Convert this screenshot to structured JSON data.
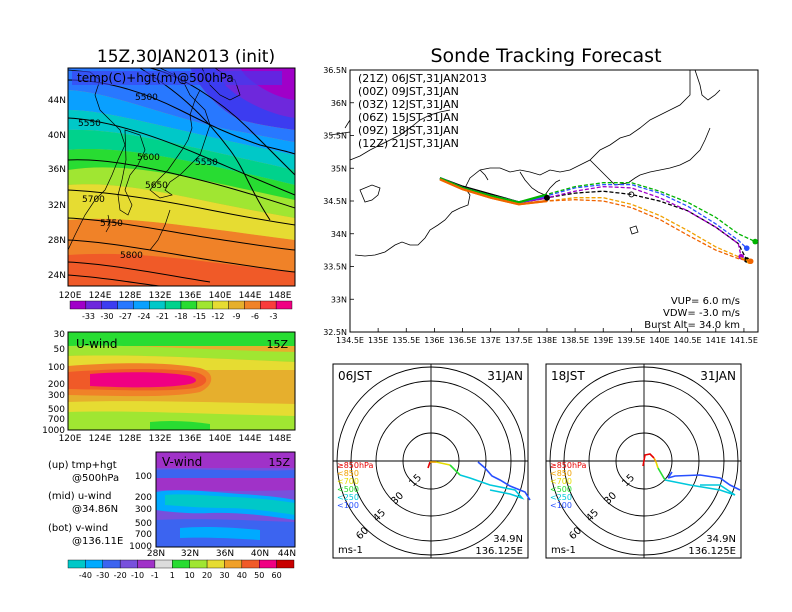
{
  "main_title": "Sonde Tracking Forecast",
  "init_title": "15Z,30JAN2013 (init)",
  "map_panel": {
    "label": "temp(C)+hgt(m)@500hPa",
    "lat_ticks": [
      "44N",
      "40N",
      "36N",
      "32N",
      "28N",
      "24N"
    ],
    "lon_ticks": [
      "120E",
      "124E",
      "128E",
      "132E",
      "136E",
      "140E",
      "144E",
      "148E"
    ],
    "contour_labels": [
      "5500",
      "5550",
      "5600",
      "5550",
      "5650",
      "5700",
      "5750",
      "5800"
    ],
    "colorbar_ticks": [
      "-33",
      "-30",
      "-27",
      "-24",
      "-21",
      "-18",
      "-15",
      "-12",
      "-9",
      "-6",
      "-3"
    ],
    "colorbar_colors": [
      "#a000c8",
      "#6e28dc",
      "#3c3cf0",
      "#2878ff",
      "#0aa0ff",
      "#00c8c8",
      "#00d28c",
      "#28dc32",
      "#a0e632",
      "#e6dc32",
      "#e6af2d",
      "#f08228",
      "#fa3c3c",
      "#f00082"
    ]
  },
  "uwind_panel": {
    "title": "U-wind",
    "time": "15Z",
    "levels": [
      "30",
      "50",
      "100",
      "200",
      "300",
      "500",
      "700",
      "1000"
    ],
    "lon_ticks": [
      "120E",
      "124E",
      "128E",
      "132E",
      "136E",
      "140E",
      "144E",
      "148E"
    ]
  },
  "vwind_panel": {
    "title": "V-wind",
    "time": "15Z",
    "levels": [
      "100",
      "200",
      "300",
      "500",
      "700",
      "1000"
    ],
    "lat_ticks": [
      "28N",
      "32N",
      "36N",
      "40N",
      "44N"
    ]
  },
  "panel_notes": {
    "up1": "(up)  tmp+hgt",
    "up2": "@500hPa",
    "mid1": "(mid)  u-wind",
    "mid2": "@34.86N",
    "bot1": "(bot)  v-wind",
    "bot2": "@136.11E"
  },
  "wind_colorbar": {
    "ticks": [
      "-40",
      "-30",
      "-20",
      "-10",
      "-1",
      "1",
      "10",
      "20",
      "30",
      "40",
      "50",
      "60"
    ],
    "colors": [
      "#00c8c8",
      "#00aaff",
      "#3c64f0",
      "#7850dc",
      "#a032c8",
      "#dcdcdc",
      "#28dc32",
      "#a0e632",
      "#e6dc32",
      "#f0a028",
      "#f05a28",
      "#f00082",
      "#c80000"
    ]
  },
  "legend": [
    {
      "label": "(21Z)  06JST,31JAN2013",
      "color": "#000000"
    },
    {
      "label": "(00Z)  09JST,31JAN",
      "color": "#a000c8"
    },
    {
      "label": "(03Z)  12JST,31JAN",
      "color": "#2850ff"
    },
    {
      "label": "(06Z)  15JST,31JAN",
      "color": "#00b400"
    },
    {
      "label": "(09Z)  18JST,31JAN",
      "color": "#f0a000"
    },
    {
      "label": "(12Z)  21JST,31JAN",
      "color": "#f06400"
    }
  ],
  "track_info": {
    "vup": "VUP=  6.0  m/s",
    "vdw": "VDW= -3.0  m/s",
    "burst": "Burst Alt=  34.0  km"
  },
  "hodographs": [
    {
      "time": "06JST",
      "date": "31JAN",
      "lat": "34.9N",
      "lon": "136.125E",
      "unit": "ms-1"
    },
    {
      "time": "18JST",
      "date": "31JAN",
      "lat": "34.9N",
      "lon": "136.125E",
      "unit": "ms-1"
    }
  ],
  "hodo_rings": [
    "15",
    "30",
    "45",
    "60"
  ],
  "hodo_level_legend": [
    {
      "label": "≥850hPa",
      "color": "#e60000"
    },
    {
      "label": "<850",
      "color": "#f0a000"
    },
    {
      "label": "<700",
      "color": "#e6dc00"
    },
    {
      "label": "<500",
      "color": "#28dc32"
    },
    {
      "label": "<250",
      "color": "#00c8dc"
    },
    {
      "label": "<100",
      "color": "#2850ff"
    }
  ],
  "chart_data": {
    "type": "line",
    "title": "Sonde Tracking Forecast",
    "xlabel": "",
    "ylabel": "",
    "xlim": [
      134.5,
      141.75
    ],
    "ylim": [
      32.5,
      36.5
    ],
    "x_ticks": [
      "134.5E",
      "135E",
      "135.5E",
      "136E",
      "136.5E",
      "137E",
      "137.5E",
      "138E",
      "138.5E",
      "139E",
      "139.5E",
      "140E",
      "140.5E",
      "141E",
      "141.5E"
    ],
    "y_ticks": [
      "32.5N",
      "33N",
      "33.5N",
      "34N",
      "34.5N",
      "35N",
      "35.5N",
      "36N",
      "36.5N"
    ],
    "series": [
      {
        "name": "(21Z)  06JST,31JAN2013",
        "color": "#000000",
        "x": [
          136.1,
          136.5,
          137,
          137.5,
          138,
          138.5,
          139,
          139.5,
          140,
          140.5,
          141,
          141.4,
          141.55
        ],
        "y": [
          34.85,
          34.72,
          34.6,
          34.48,
          34.55,
          34.62,
          34.65,
          34.6,
          34.5,
          34.35,
          34.1,
          33.85,
          33.6
        ]
      },
      {
        "name": "(00Z)  09JST,31JAN",
        "color": "#a000c8",
        "x": [
          136.1,
          136.5,
          137,
          137.5,
          138,
          138.5,
          139,
          139.5,
          140,
          140.5,
          141,
          141.4,
          141.45
        ],
        "y": [
          34.85,
          34.7,
          34.58,
          34.48,
          34.55,
          34.65,
          34.72,
          34.7,
          34.55,
          34.35,
          34.1,
          33.85,
          33.65
        ]
      },
      {
        "name": "(03Z)  12JST,31JAN",
        "color": "#2850ff",
        "x": [
          136.1,
          136.5,
          137,
          137.5,
          138,
          138.5,
          139,
          139.5,
          140,
          140.5,
          141,
          141.4,
          141.55
        ],
        "y": [
          34.85,
          34.7,
          34.58,
          34.48,
          34.58,
          34.7,
          34.75,
          34.75,
          34.62,
          34.42,
          34.15,
          33.9,
          33.78
        ]
      },
      {
        "name": "(06Z)  15JST,31JAN",
        "color": "#00b400",
        "x": [
          136.1,
          136.5,
          137,
          137.5,
          138,
          138.5,
          139,
          139.5,
          140,
          140.5,
          141,
          141.4,
          141.7
        ],
        "y": [
          34.85,
          34.7,
          34.58,
          34.48,
          34.6,
          34.72,
          34.78,
          34.78,
          34.65,
          34.48,
          34.25,
          34.0,
          33.88
        ]
      },
      {
        "name": "(09Z)  18JST,31JAN",
        "color": "#f0a000",
        "x": [
          136.1,
          136.5,
          137,
          137.5,
          138,
          138.5,
          139,
          139.5,
          140,
          140.5,
          141,
          141.4,
          141.6
        ],
        "y": [
          34.83,
          34.68,
          34.55,
          34.45,
          34.5,
          34.55,
          34.55,
          34.45,
          34.28,
          34.05,
          33.8,
          33.65,
          33.58
        ]
      },
      {
        "name": "(12Z)  21JST,31JAN",
        "color": "#f06400",
        "x": [
          136.1,
          136.5,
          137,
          137.5,
          138,
          138.5,
          139,
          139.5,
          140,
          140.5,
          141,
          141.4,
          141.62
        ],
        "y": [
          34.83,
          34.68,
          34.55,
          34.45,
          34.5,
          34.52,
          34.5,
          34.4,
          34.22,
          33.98,
          33.75,
          33.62,
          33.58
        ]
      }
    ]
  }
}
